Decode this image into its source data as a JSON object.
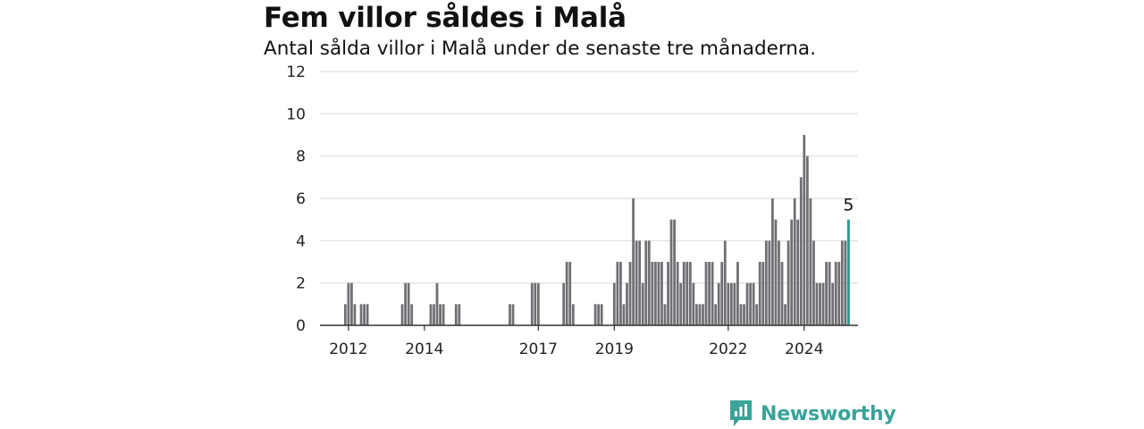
{
  "header": {
    "title": "Fem villor såldes i Malå",
    "subtitle": "Antal sålda villor i Malå under de senaste tre månaderna."
  },
  "brand": {
    "name": "Newsworthy",
    "logo_icon": "bar-chart-speech-bubble-icon"
  },
  "colors": {
    "bar": "#6f6f74",
    "highlight": "#2a9d8f",
    "grid": "#dddddd",
    "axis": "#333333"
  },
  "chart_data": {
    "type": "bar",
    "title": "Fem villor såldes i Malå",
    "subtitle": "Antal sålda villor i Malå under de senaste tre månaderna.",
    "xlabel": "",
    "ylabel": "",
    "ylim": [
      0,
      12
    ],
    "yticks": [
      "0",
      "2",
      "4",
      "6",
      "8",
      "10",
      "12"
    ],
    "xticks": [
      "2012",
      "2014",
      "2017",
      "2019",
      "2022",
      "2024"
    ],
    "x_range": [
      "2011-06",
      "2025-08"
    ],
    "grid": true,
    "x_period": "month",
    "points": [
      {
        "x": "2012-02",
        "v": 1
      },
      {
        "x": "2012-03",
        "v": 2
      },
      {
        "x": "2012-04",
        "v": 2
      },
      {
        "x": "2012-05",
        "v": 1
      },
      {
        "x": "2012-07",
        "v": 1
      },
      {
        "x": "2012-08",
        "v": 1
      },
      {
        "x": "2012-09",
        "v": 1
      },
      {
        "x": "2013-08",
        "v": 1
      },
      {
        "x": "2013-09",
        "v": 2
      },
      {
        "x": "2013-10",
        "v": 2
      },
      {
        "x": "2013-11",
        "v": 1
      },
      {
        "x": "2014-05",
        "v": 1
      },
      {
        "x": "2014-06",
        "v": 1
      },
      {
        "x": "2014-07",
        "v": 2
      },
      {
        "x": "2014-08",
        "v": 1
      },
      {
        "x": "2014-09",
        "v": 1
      },
      {
        "x": "2015-01",
        "v": 1
      },
      {
        "x": "2015-02",
        "v": 1
      },
      {
        "x": "2016-06",
        "v": 1
      },
      {
        "x": "2016-07",
        "v": 1
      },
      {
        "x": "2017-01",
        "v": 2
      },
      {
        "x": "2017-02",
        "v": 2
      },
      {
        "x": "2017-03",
        "v": 2
      },
      {
        "x": "2017-11",
        "v": 2
      },
      {
        "x": "2017-12",
        "v": 3
      },
      {
        "x": "2018-01",
        "v": 3
      },
      {
        "x": "2018-02",
        "v": 1
      },
      {
        "x": "2018-09",
        "v": 1
      },
      {
        "x": "2018-10",
        "v": 1
      },
      {
        "x": "2018-11",
        "v": 1
      },
      {
        "x": "2019-03",
        "v": 2
      },
      {
        "x": "2019-04",
        "v": 3
      },
      {
        "x": "2019-05",
        "v": 3
      },
      {
        "x": "2019-06",
        "v": 1
      },
      {
        "x": "2019-07",
        "v": 2
      },
      {
        "x": "2019-08",
        "v": 3
      },
      {
        "x": "2019-09",
        "v": 6
      },
      {
        "x": "2019-10",
        "v": 4
      },
      {
        "x": "2019-11",
        "v": 4
      },
      {
        "x": "2019-12",
        "v": 2
      },
      {
        "x": "2020-01",
        "v": 4
      },
      {
        "x": "2020-02",
        "v": 4
      },
      {
        "x": "2020-03",
        "v": 3
      },
      {
        "x": "2020-04",
        "v": 3
      },
      {
        "x": "2020-05",
        "v": 3
      },
      {
        "x": "2020-06",
        "v": 3
      },
      {
        "x": "2020-07",
        "v": 1
      },
      {
        "x": "2020-08",
        "v": 3
      },
      {
        "x": "2020-09",
        "v": 5
      },
      {
        "x": "2020-10",
        "v": 5
      },
      {
        "x": "2020-11",
        "v": 3
      },
      {
        "x": "2020-12",
        "v": 2
      },
      {
        "x": "2021-01",
        "v": 3
      },
      {
        "x": "2021-02",
        "v": 3
      },
      {
        "x": "2021-03",
        "v": 3
      },
      {
        "x": "2021-04",
        "v": 2
      },
      {
        "x": "2021-05",
        "v": 1
      },
      {
        "x": "2021-06",
        "v": 1
      },
      {
        "x": "2021-07",
        "v": 1
      },
      {
        "x": "2021-08",
        "v": 3
      },
      {
        "x": "2021-09",
        "v": 3
      },
      {
        "x": "2021-10",
        "v": 3
      },
      {
        "x": "2021-11",
        "v": 1
      },
      {
        "x": "2021-12",
        "v": 2
      },
      {
        "x": "2022-01",
        "v": 3
      },
      {
        "x": "2022-02",
        "v": 4
      },
      {
        "x": "2022-03",
        "v": 2
      },
      {
        "x": "2022-04",
        "v": 2
      },
      {
        "x": "2022-05",
        "v": 2
      },
      {
        "x": "2022-06",
        "v": 3
      },
      {
        "x": "2022-07",
        "v": 1
      },
      {
        "x": "2022-08",
        "v": 1
      },
      {
        "x": "2022-09",
        "v": 2
      },
      {
        "x": "2022-10",
        "v": 2
      },
      {
        "x": "2022-11",
        "v": 2
      },
      {
        "x": "2022-12",
        "v": 1
      },
      {
        "x": "2023-01",
        "v": 3
      },
      {
        "x": "2023-02",
        "v": 3
      },
      {
        "x": "2023-03",
        "v": 4
      },
      {
        "x": "2023-04",
        "v": 4
      },
      {
        "x": "2023-05",
        "v": 6
      },
      {
        "x": "2023-06",
        "v": 5
      },
      {
        "x": "2023-07",
        "v": 4
      },
      {
        "x": "2023-08",
        "v": 3
      },
      {
        "x": "2023-09",
        "v": 1
      },
      {
        "x": "2023-10",
        "v": 4
      },
      {
        "x": "2023-11",
        "v": 5
      },
      {
        "x": "2023-12",
        "v": 6
      },
      {
        "x": "2024-01",
        "v": 5
      },
      {
        "x": "2024-02",
        "v": 7
      },
      {
        "x": "2024-03",
        "v": 9
      },
      {
        "x": "2024-04",
        "v": 8
      },
      {
        "x": "2024-05",
        "v": 6
      },
      {
        "x": "2024-06",
        "v": 4
      },
      {
        "x": "2024-07",
        "v": 2
      },
      {
        "x": "2024-08",
        "v": 2
      },
      {
        "x": "2024-09",
        "v": 2
      },
      {
        "x": "2024-10",
        "v": 3
      },
      {
        "x": "2024-11",
        "v": 3
      },
      {
        "x": "2024-12",
        "v": 2
      },
      {
        "x": "2025-01",
        "v": 3
      },
      {
        "x": "2025-02",
        "v": 3
      },
      {
        "x": "2025-03",
        "v": 4
      },
      {
        "x": "2025-04",
        "v": 4
      }
    ],
    "highlight": {
      "x": "2025-05",
      "v": 5,
      "label": "5"
    }
  }
}
